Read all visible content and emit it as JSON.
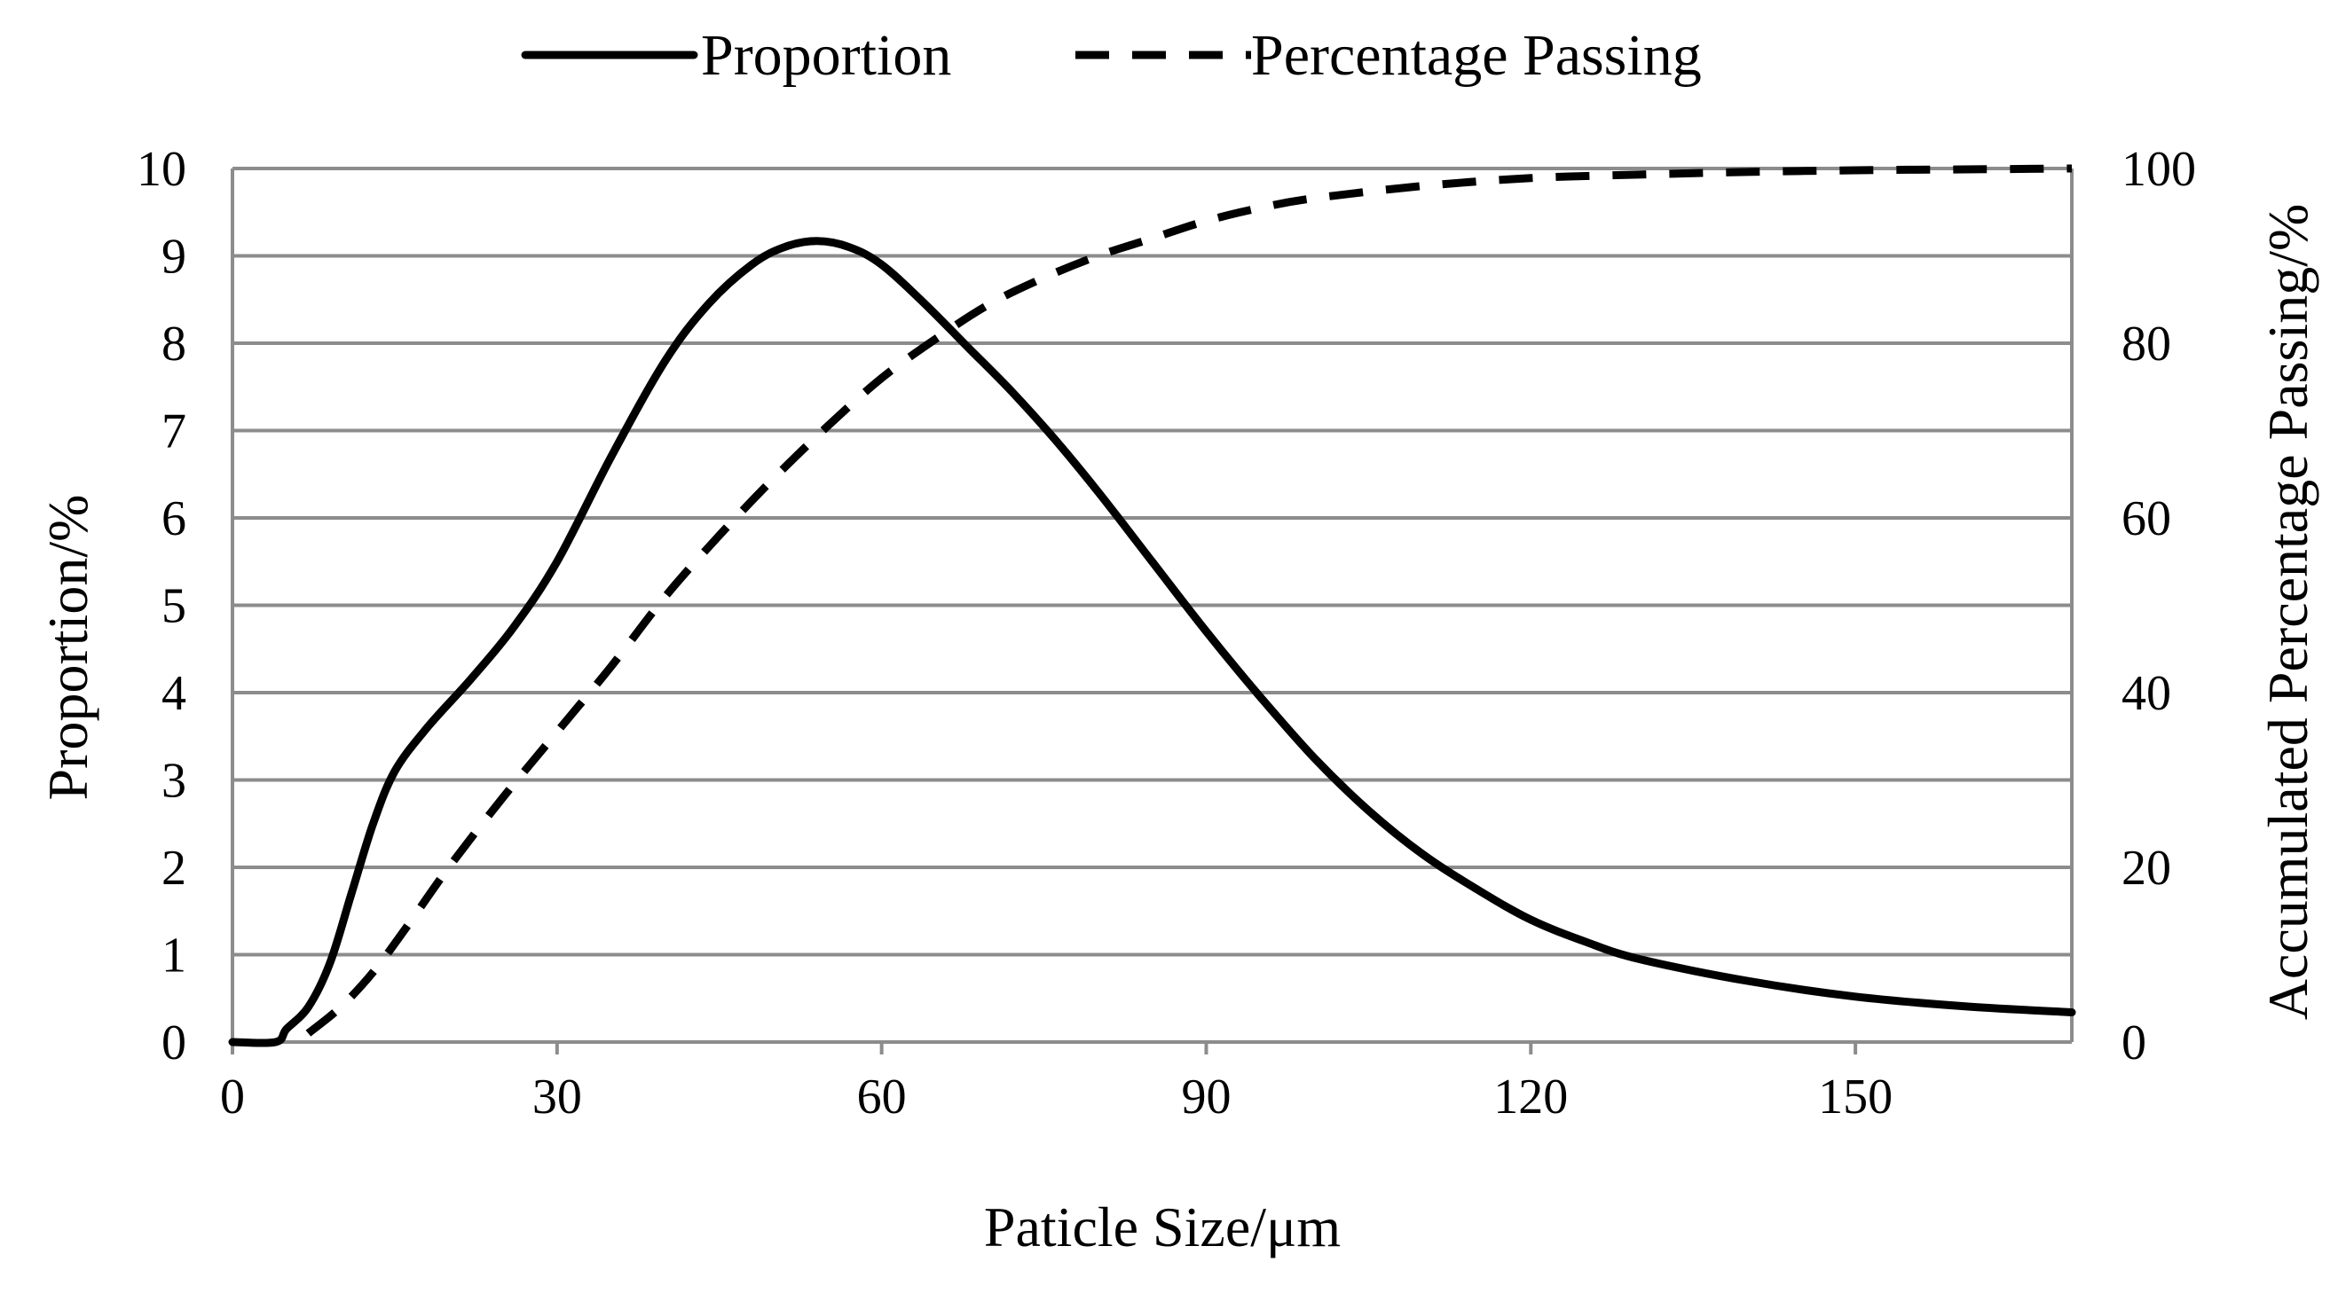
{
  "chart_data": {
    "type": "line",
    "title": "",
    "xlabel": "Paticle Size/μm",
    "ylabel": "Proportion/%",
    "y2label": "Accumulated Percentage Passing/%",
    "xlim": [
      0,
      170
    ],
    "ylim": [
      0,
      10
    ],
    "y2lim": [
      0,
      100
    ],
    "xticks": [
      0,
      30,
      60,
      90,
      120,
      150
    ],
    "yticks": [
      0,
      1,
      2,
      3,
      4,
      5,
      6,
      7,
      8,
      9,
      10
    ],
    "y2ticks": [
      0,
      20,
      40,
      60,
      80,
      100
    ],
    "grid": "horizontal",
    "legend_position": "top",
    "series": [
      {
        "name": "Proportion",
        "axis": "left",
        "style": "solid",
        "x": [
          0,
          4,
          5,
          7,
          9,
          11,
          13,
          15,
          18,
          22,
          26,
          30,
          35,
          40,
          44,
          48,
          51,
          54,
          57,
          60,
          64,
          68,
          72,
          76,
          80,
          85,
          90,
          95,
          100,
          105,
          110,
          115,
          120,
          125,
          130,
          140,
          150,
          160,
          170
        ],
        "values": [
          0,
          0,
          0.15,
          0.4,
          0.9,
          1.7,
          2.5,
          3.1,
          3.6,
          4.15,
          4.75,
          5.5,
          6.7,
          7.8,
          8.45,
          8.9,
          9.1,
          9.17,
          9.1,
          8.9,
          8.45,
          7.95,
          7.45,
          6.9,
          6.3,
          5.5,
          4.7,
          3.95,
          3.25,
          2.65,
          2.15,
          1.75,
          1.4,
          1.15,
          0.95,
          0.7,
          0.52,
          0.41,
          0.34
        ]
      },
      {
        "name": "Percentage Passing",
        "axis": "right",
        "style": "dashed",
        "x": [
          7,
          10,
          13,
          16,
          20,
          25,
          30,
          35,
          40,
          45,
          50,
          55,
          60,
          65,
          70,
          75,
          80,
          85,
          90,
          95,
          100,
          110,
          120,
          130,
          140,
          150,
          160,
          170
        ],
        "values": [
          1,
          4,
          8,
          13,
          20,
          28,
          35.5,
          43,
          51,
          58,
          64.5,
          70.5,
          76,
          80.5,
          84.5,
          87.5,
          90,
          92,
          94,
          95.5,
          96.6,
          98,
          98.9,
          99.3,
          99.6,
          99.8,
          99.9,
          100
        ]
      }
    ]
  }
}
